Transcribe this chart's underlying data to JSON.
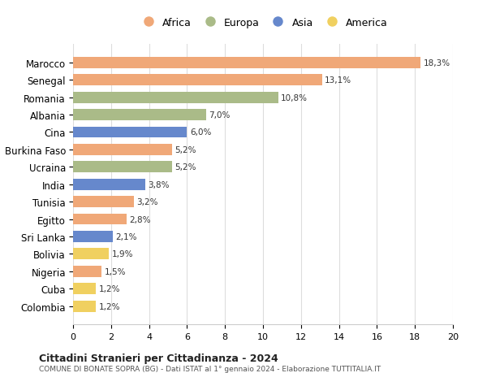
{
  "categories": [
    "Colombia",
    "Cuba",
    "Nigeria",
    "Bolivia",
    "Sri Lanka",
    "Egitto",
    "Tunisia",
    "India",
    "Ucraina",
    "Burkina Faso",
    "Cina",
    "Albania",
    "Romania",
    "Senegal",
    "Marocco"
  ],
  "values": [
    1.2,
    1.2,
    1.5,
    1.9,
    2.1,
    2.8,
    3.2,
    3.8,
    5.2,
    5.2,
    6.0,
    7.0,
    10.8,
    13.1,
    18.3
  ],
  "labels": [
    "1,2%",
    "1,2%",
    "1,5%",
    "1,9%",
    "2,1%",
    "2,8%",
    "3,2%",
    "3,8%",
    "5,2%",
    "5,2%",
    "6,0%",
    "7,0%",
    "10,8%",
    "13,1%",
    "18,3%"
  ],
  "continents": [
    "America",
    "America",
    "Africa",
    "America",
    "Asia",
    "Africa",
    "Africa",
    "Asia",
    "Europa",
    "Africa",
    "Asia",
    "Europa",
    "Europa",
    "Africa",
    "Africa"
  ],
  "colors": {
    "Africa": "#F0A878",
    "Europa": "#AABB88",
    "Asia": "#6688CC",
    "America": "#F0D060"
  },
  "legend_order": [
    "Africa",
    "Europa",
    "Asia",
    "America"
  ],
  "title1": "Cittadini Stranieri per Cittadinanza - 2024",
  "title2": "COMUNE DI BONATE SOPRA (BG) - Dati ISTAT al 1° gennaio 2024 - Elaborazione TUTTITALIA.IT",
  "xlim": [
    0,
    20
  ],
  "xticks": [
    0,
    2,
    4,
    6,
    8,
    10,
    12,
    14,
    16,
    18,
    20
  ],
  "background_color": "#ffffff",
  "grid_color": "#dddddd"
}
